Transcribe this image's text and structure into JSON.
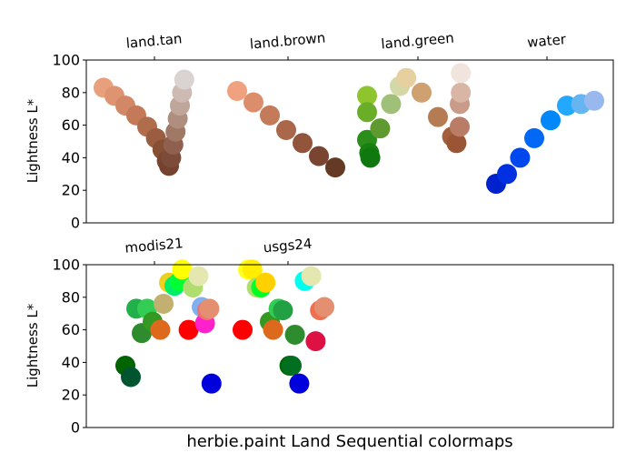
{
  "xlabel": "herbie.paint Land Sequential colormaps",
  "chart_data": [
    {
      "type": "scatter",
      "ylabel": "Lightness L*",
      "ylim": [
        0,
        100
      ],
      "yticks": [
        0,
        20,
        40,
        60,
        80,
        100
      ],
      "grid": false,
      "categories": [
        "land.tan",
        "land.brown",
        "land.green",
        "water"
      ],
      "series": [
        {
          "name": "land.tan",
          "points": [
            {
              "x": 0.0,
              "y": 83,
              "color": "#e8a07c"
            },
            {
              "x": 0.1,
              "y": 78,
              "color": "#de9470"
            },
            {
              "x": 0.2,
              "y": 72,
              "color": "#d28866"
            },
            {
              "x": 0.3,
              "y": 66,
              "color": "#c47a58"
            },
            {
              "x": 0.4,
              "y": 59,
              "color": "#b06d4b"
            },
            {
              "x": 0.48,
              "y": 52,
              "color": "#9a5d3f"
            },
            {
              "x": 0.54,
              "y": 45,
              "color": "#874f34"
            },
            {
              "x": 0.58,
              "y": 38,
              "color": "#7a452e"
            },
            {
              "x": 0.6,
              "y": 35,
              "color": "#754230"
            },
            {
              "x": 0.62,
              "y": 40,
              "color": "#7d4b3a"
            },
            {
              "x": 0.64,
              "y": 48,
              "color": "#8f6050"
            },
            {
              "x": 0.66,
              "y": 56,
              "color": "#a07866"
            },
            {
              "x": 0.68,
              "y": 64,
              "color": "#b08e7f"
            },
            {
              "x": 0.7,
              "y": 72,
              "color": "#c0a59a"
            },
            {
              "x": 0.72,
              "y": 80,
              "color": "#cdbab3"
            },
            {
              "x": 0.74,
              "y": 88,
              "color": "#d9d4d2"
            }
          ]
        },
        {
          "name": "land.brown",
          "points": [
            {
              "x": 0.0,
              "y": 81,
              "color": "#f0a17f"
            },
            {
              "x": 0.15,
              "y": 74,
              "color": "#dc8e6c"
            },
            {
              "x": 0.3,
              "y": 66,
              "color": "#c47b5a"
            },
            {
              "x": 0.45,
              "y": 57,
              "color": "#ab6749"
            },
            {
              "x": 0.6,
              "y": 49,
              "color": "#92543a"
            },
            {
              "x": 0.75,
              "y": 41,
              "color": "#7a4530"
            },
            {
              "x": 0.9,
              "y": 34,
              "color": "#643a24"
            }
          ]
        },
        {
          "name": "land.green",
          "points": [
            {
              "x": 0.0,
              "y": 78,
              "color": "#8ec42c"
            },
            {
              "x": 0.0,
              "y": 68,
              "color": "#6aad28"
            },
            {
              "x": 0.0,
              "y": 51,
              "color": "#2b8d1a"
            },
            {
              "x": 0.02,
              "y": 43,
              "color": "#168011"
            },
            {
              "x": 0.03,
              "y": 40,
              "color": "#0f780f"
            },
            {
              "x": 0.12,
              "y": 58,
              "color": "#5f9a30"
            },
            {
              "x": 0.22,
              "y": 73,
              "color": "#a0c07a"
            },
            {
              "x": 0.3,
              "y": 84,
              "color": "#d4d8a6"
            },
            {
              "x": 0.36,
              "y": 89,
              "color": "#e6d0a0"
            },
            {
              "x": 0.5,
              "y": 80,
              "color": "#cfa070"
            },
            {
              "x": 0.65,
              "y": 65,
              "color": "#b57b52"
            },
            {
              "x": 0.78,
              "y": 53,
              "color": "#a35e3c"
            },
            {
              "x": 0.82,
              "y": 49,
              "color": "#9a5535"
            },
            {
              "x": 0.85,
              "y": 59,
              "color": "#b97c67"
            },
            {
              "x": 0.85,
              "y": 73,
              "color": "#c99b88"
            },
            {
              "x": 0.86,
              "y": 80,
              "color": "#d9b5a6"
            },
            {
              "x": 0.86,
              "y": 92,
              "color": "#f0e4dc"
            }
          ]
        },
        {
          "name": "water",
          "points": [
            {
              "x": 0.0,
              "y": 24,
              "color": "#0022cc"
            },
            {
              "x": 0.1,
              "y": 30,
              "color": "#0030e0"
            },
            {
              "x": 0.22,
              "y": 40,
              "color": "#0048ee"
            },
            {
              "x": 0.35,
              "y": 52,
              "color": "#0068f4"
            },
            {
              "x": 0.5,
              "y": 63,
              "color": "#0088f8"
            },
            {
              "x": 0.65,
              "y": 72,
              "color": "#22a8ff"
            },
            {
              "x": 0.78,
              "y": 73,
              "color": "#66b4f0"
            },
            {
              "x": 0.9,
              "y": 75,
              "color": "#99b8ee"
            }
          ]
        }
      ]
    },
    {
      "type": "scatter",
      "ylabel": "Lightness L*",
      "ylim": [
        0,
        100
      ],
      "yticks": [
        0,
        20,
        40,
        60,
        80,
        100
      ],
      "grid": false,
      "categories": [
        "modis21",
        "usgs24"
      ],
      "series": [
        {
          "name": "modis21",
          "points": [
            {
              "x": 0.2,
              "y": 38,
              "color": "#006400"
            },
            {
              "x": 0.25,
              "y": 31,
              "color": "#005530"
            },
            {
              "x": 0.3,
              "y": 73,
              "color": "#22b04a"
            },
            {
              "x": 0.35,
              "y": 58,
              "color": "#2e8b2e"
            },
            {
              "x": 0.4,
              "y": 73,
              "color": "#33cc55"
            },
            {
              "x": 0.45,
              "y": 65,
              "color": "#339922"
            },
            {
              "x": 0.52,
              "y": 60,
              "color": "#dd6a1c"
            },
            {
              "x": 0.55,
              "y": 76,
              "color": "#c2b070"
            },
            {
              "x": 0.6,
              "y": 89,
              "color": "#eed020"
            },
            {
              "x": 0.65,
              "y": 87,
              "color": "#00ee66"
            },
            {
              "x": 0.7,
              "y": 90,
              "color": "#00ff33"
            },
            {
              "x": 0.72,
              "y": 97,
              "color": "#ffff00"
            },
            {
              "x": 0.78,
              "y": 60,
              "color": "#ff0000"
            },
            {
              "x": 0.82,
              "y": 86,
              "color": "#b0dd70"
            },
            {
              "x": 0.87,
              "y": 93,
              "color": "#e4e8b0"
            },
            {
              "x": 0.9,
              "y": 74,
              "color": "#80b0ee"
            },
            {
              "x": 0.93,
              "y": 64,
              "color": "#ff22cc"
            },
            {
              "x": 0.95,
              "y": 72,
              "color": "#ee7070"
            },
            {
              "x": 0.97,
              "y": 73,
              "color": "#e49070"
            },
            {
              "x": 0.99,
              "y": 27,
              "color": "#0000dd"
            }
          ]
        },
        {
          "name": "usgs24",
          "points": [
            {
              "x": 0.05,
              "y": 60,
              "color": "#ff0000"
            },
            {
              "x": 0.1,
              "y": 97,
              "color": "#ffff22"
            },
            {
              "x": 0.14,
              "y": 97,
              "color": "#ffee00"
            },
            {
              "x": 0.18,
              "y": 86,
              "color": "#b0dd70"
            },
            {
              "x": 0.22,
              "y": 86,
              "color": "#00ff22"
            },
            {
              "x": 0.26,
              "y": 89,
              "color": "#ffd000"
            },
            {
              "x": 0.3,
              "y": 65,
              "color": "#339922"
            },
            {
              "x": 0.33,
              "y": 60,
              "color": "#dd6a1c"
            },
            {
              "x": 0.38,
              "y": 73,
              "color": "#33cc55"
            },
            {
              "x": 0.42,
              "y": 72,
              "color": "#22a044"
            },
            {
              "x": 0.48,
              "y": 38,
              "color": "#006400"
            },
            {
              "x": 0.5,
              "y": 38,
              "color": "#007020"
            },
            {
              "x": 0.53,
              "y": 57,
              "color": "#2e8b2e"
            },
            {
              "x": 0.57,
              "y": 27,
              "color": "#0000dd"
            },
            {
              "x": 0.62,
              "y": 90,
              "color": "#00ffee"
            },
            {
              "x": 0.68,
              "y": 93,
              "color": "#e4e8b0"
            },
            {
              "x": 0.72,
              "y": 53,
              "color": "#dd1144"
            },
            {
              "x": 0.76,
              "y": 72,
              "color": "#ee7050"
            },
            {
              "x": 0.8,
              "y": 74,
              "color": "#e49070"
            }
          ]
        }
      ]
    }
  ]
}
